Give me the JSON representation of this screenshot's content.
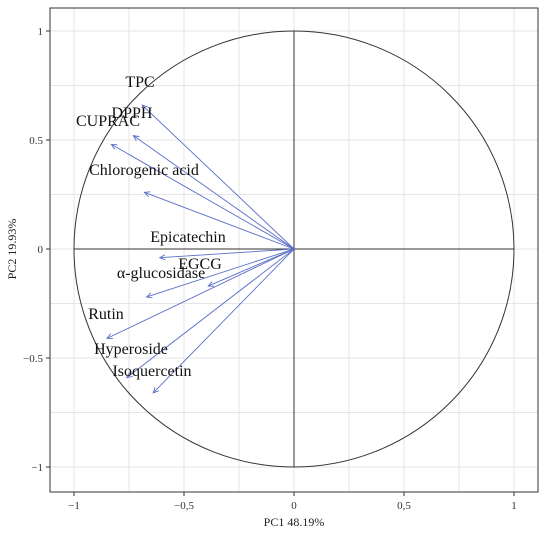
{
  "chart_data": {
    "type": "scatter",
    "subtype": "pca-correlation-circle",
    "xlabel": "PC1 48.19%",
    "ylabel": "PC2 19.93%",
    "xlim": [
      -1.1,
      1.1
    ],
    "ylim": [
      -1.1,
      1.1
    ],
    "x_ticks": [
      -1,
      -0.5,
      0,
      0.5,
      1
    ],
    "x_tick_labels": [
      "−1",
      "−0,5",
      "0",
      "0,5",
      "1"
    ],
    "y_ticks": [
      -1,
      -0.5,
      0,
      0.5,
      1
    ],
    "y_tick_labels": [
      "−1",
      "−0.5",
      "0",
      "0.5",
      "1"
    ],
    "grid": true,
    "unit_circle": true,
    "arrow_color": "#5b6fc8",
    "variables": [
      {
        "name": "TPC",
        "x": -0.69,
        "y": 0.66
      },
      {
        "name": "DPPH",
        "x": -0.73,
        "y": 0.52
      },
      {
        "name": "CUPRAC",
        "x": -0.83,
        "y": 0.48
      },
      {
        "name": "Chlorogenic acid",
        "x": -0.68,
        "y": 0.26
      },
      {
        "name": "Epicatechin",
        "x": -0.61,
        "y": -0.04
      },
      {
        "name": "EGCG",
        "x": -0.39,
        "y": -0.17
      },
      {
        "name": "α-glucosidase",
        "x": -0.67,
        "y": -0.22
      },
      {
        "name": "Rutin",
        "x": -0.85,
        "y": -0.41
      },
      {
        "name": "Hyperoside",
        "x": -0.76,
        "y": -0.59
      },
      {
        "name": "Isoquercetin",
        "x": -0.64,
        "y": -0.66
      }
    ]
  }
}
